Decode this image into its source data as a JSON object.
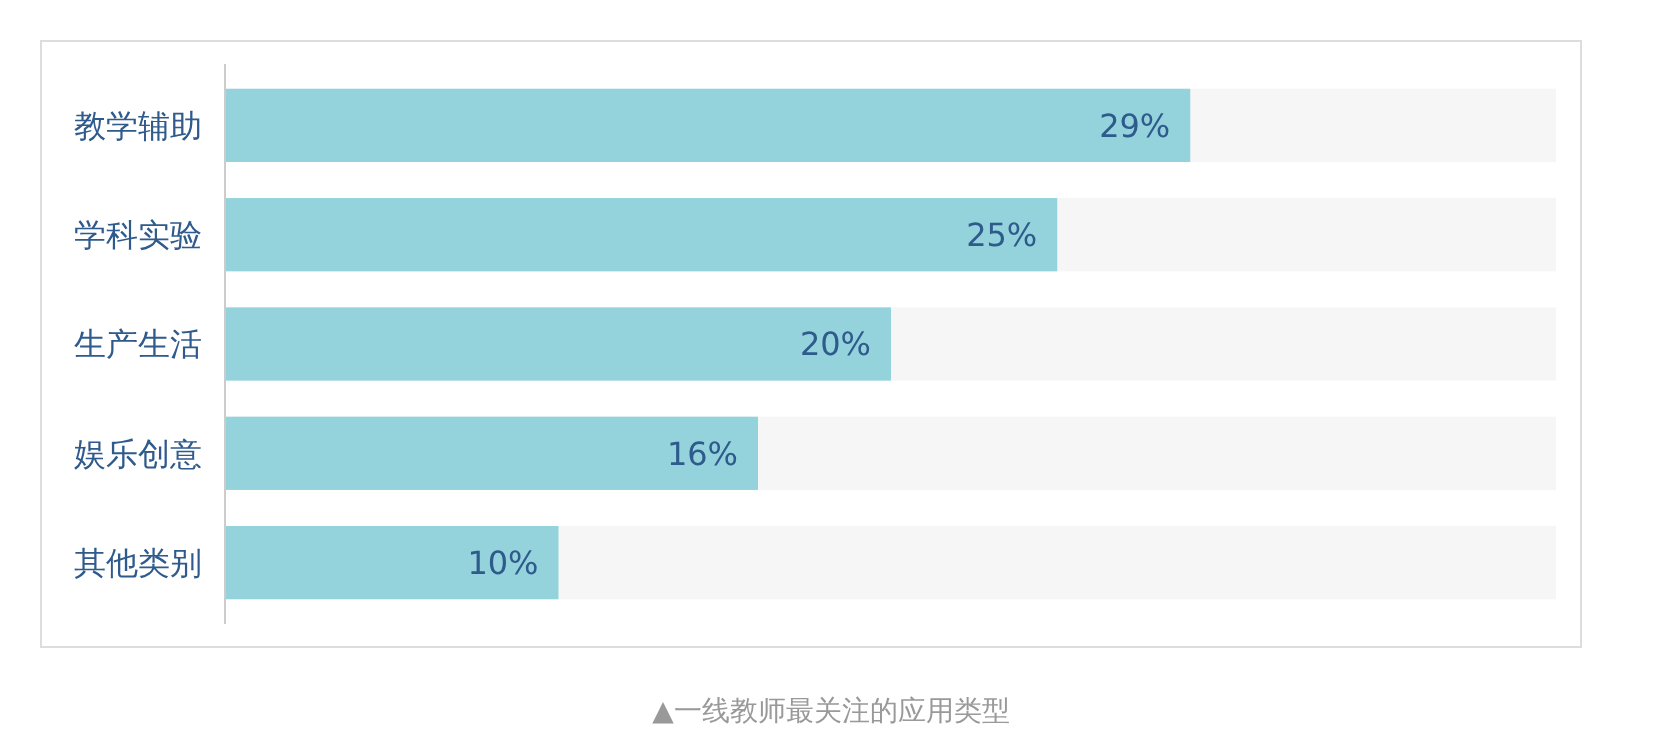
{
  "chart_data": {
    "type": "bar",
    "orientation": "horizontal",
    "categories": [
      "教学辅助",
      "学科实验",
      "生产生活",
      "娱乐创意",
      "其他类别"
    ],
    "values": [
      29,
      25,
      20,
      16,
      10
    ],
    "color": "#94d3dc",
    "xlim": [
      0,
      40
    ],
    "data_labels": true,
    "value_labels": [
      "29%",
      "25%",
      "20%",
      "16%",
      "10%"
    ],
    "tick_labels": "y",
    "annotations": [
      "▲一线教师最关注的应用类型"
    ]
  }
}
